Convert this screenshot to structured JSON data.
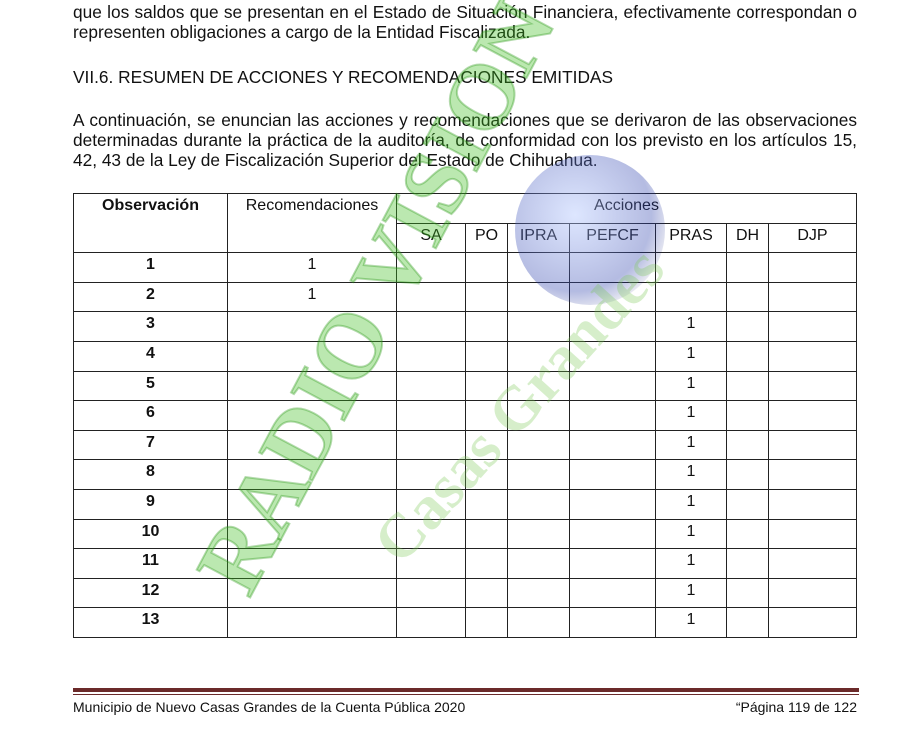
{
  "intro_paragraph": "que los saldos que se presentan en el Estado de Situación Financiera, efectivamente correspondan o representen obligaciones a cargo de la Entidad Fiscalizada.",
  "section_heading": "VII.6. RESUMEN DE ACCIONES Y RECOMENDACIONES EMITIDAS",
  "body_paragraph": "A continuación, se enuncian las acciones y recomendaciones que se derivaron de las observaciones determinadas durante la práctica de la auditoría, de conformidad con los previsto en los artículos 15, 42, 43 de la Ley de Fiscalización Superior del Estado de Chihuahua.",
  "table": {
    "headers": {
      "observacion": "Observación",
      "recomendaciones": "Recomendaciones",
      "acciones": "Acciones"
    },
    "action_columns": [
      "SA",
      "PO",
      "IPRA",
      "PEFCF",
      "PRAS",
      "DH",
      "DJP"
    ],
    "rows": [
      {
        "obs": "1",
        "rec": "1",
        "pras": ""
      },
      {
        "obs": "2",
        "rec": "1",
        "pras": ""
      },
      {
        "obs": "3",
        "rec": "",
        "pras": "1"
      },
      {
        "obs": "4",
        "rec": "",
        "pras": "1"
      },
      {
        "obs": "5",
        "rec": "",
        "pras": "1"
      },
      {
        "obs": "6",
        "rec": "",
        "pras": "1"
      },
      {
        "obs": "7",
        "rec": "",
        "pras": "1"
      },
      {
        "obs": "8",
        "rec": "",
        "pras": "1"
      },
      {
        "obs": "9",
        "rec": "",
        "pras": "1"
      },
      {
        "obs": "10",
        "rec": "",
        "pras": "1"
      },
      {
        "obs": "11",
        "rec": "",
        "pras": "1"
      },
      {
        "obs": "12",
        "rec": "",
        "pras": "1"
      },
      {
        "obs": "13",
        "rec": "",
        "pras": "1"
      }
    ]
  },
  "watermark": {
    "line1": "RADIO VISION",
    "line2": "Casas Grandes"
  },
  "footer": {
    "left": "Municipio de Nuevo Casas Grandes de la Cuenta Pública 2020",
    "right": "“Página 119 de 122"
  },
  "colors": {
    "footer_rule": "#6b2a2a",
    "watermark": "#3cbe1e"
  }
}
